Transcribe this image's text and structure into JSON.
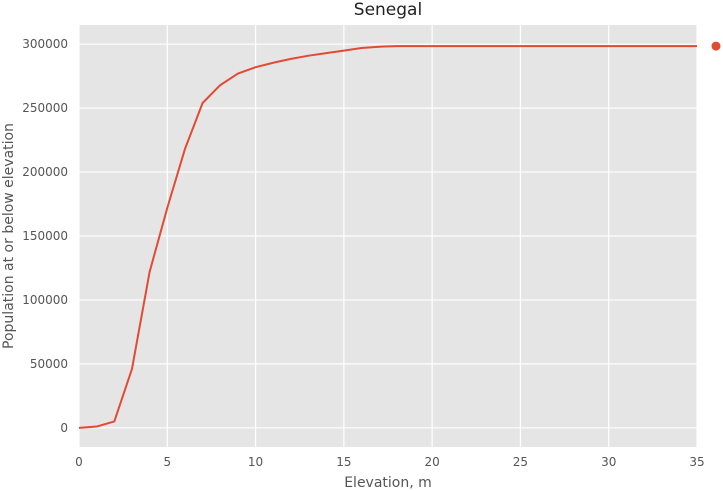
{
  "chart_data": {
    "type": "line",
    "title": "Senegal",
    "xlabel": "Elevation, m",
    "ylabel": "Population at or below elevation",
    "xlim": [
      0,
      35
    ],
    "ylim": [
      -15000,
      315000
    ],
    "xticks": [
      0,
      5,
      10,
      15,
      20,
      25,
      30,
      35
    ],
    "yticks": [
      0,
      50000,
      100000,
      150000,
      200000,
      250000,
      300000
    ],
    "grid": true,
    "series": [
      {
        "color": "#E24A33",
        "x": [
          0,
          1,
          2,
          3,
          4,
          5,
          6,
          7,
          8,
          9,
          10,
          11,
          12,
          13,
          14,
          15,
          16,
          17,
          18,
          19,
          20,
          21,
          22,
          23,
          24,
          25,
          26,
          27,
          28,
          29,
          30,
          31,
          32,
          33,
          34,
          35
        ],
        "y": [
          0,
          1000,
          5000,
          46000,
          122000,
          172000,
          218000,
          254000,
          268000,
          277000,
          282000,
          285500,
          288500,
          291000,
          293000,
          295000,
          297000,
          298000,
          298500,
          298500,
          298500,
          298500,
          298500,
          298500,
          298500,
          298500,
          298500,
          298500,
          298500,
          298500,
          298500,
          298500,
          298500,
          298500,
          298500,
          298500
        ]
      }
    ],
    "marker": {
      "x": 35,
      "y": 298500,
      "color": "#E24A33"
    }
  }
}
